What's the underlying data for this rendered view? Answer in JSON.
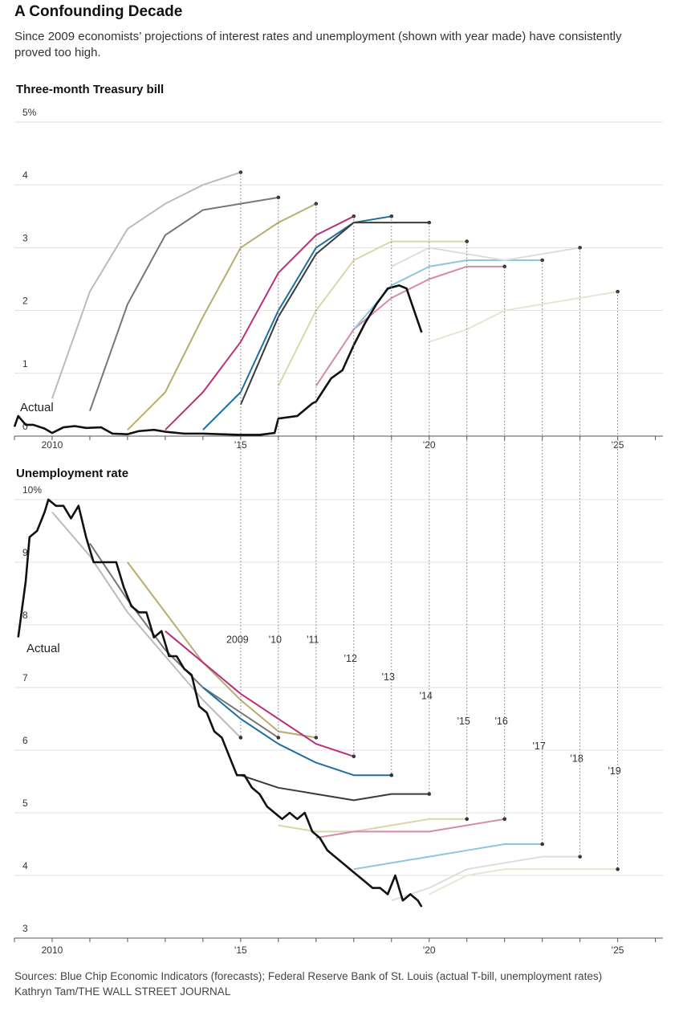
{
  "title": "A Confounding Decade",
  "subtitle": "Since 2009 economists’ projections of interest rates and unemployment (shown with year made) have consistently proved too high.",
  "footer": {
    "sources": "Sources: Blue Chip Economic Indicators (forecasts); Federal Reserve Bank of St. Louis (actual T-bill, unemployment rates)",
    "credit": "Kathryn Tam/THE WALL STREET JOURNAL"
  },
  "chart_data": [
    {
      "type": "line",
      "title": "Three-month Treasury bill",
      "ylim": [
        0,
        5
      ],
      "yticks": [
        0,
        1,
        2,
        3,
        4,
        5
      ],
      "ytick_labels": [
        "0",
        "1",
        "2",
        "3",
        "4",
        "5%"
      ],
      "xlim": [
        2009.0,
        2026.2
      ],
      "xticks": [
        2010,
        2015,
        2020,
        2025
      ],
      "xtick_labels": [
        "2010",
        "'15",
        "'20",
        "'25"
      ],
      "actual_label": "Actual",
      "actual": [
        [
          2009.0,
          0.15
        ],
        [
          2009.1,
          0.32
        ],
        [
          2009.3,
          0.18
        ],
        [
          2009.5,
          0.18
        ],
        [
          2009.8,
          0.12
        ],
        [
          2010.0,
          0.05
        ],
        [
          2010.3,
          0.14
        ],
        [
          2010.6,
          0.16
        ],
        [
          2010.9,
          0.13
        ],
        [
          2011.3,
          0.14
        ],
        [
          2011.6,
          0.04
        ],
        [
          2012.0,
          0.03
        ],
        [
          2012.3,
          0.08
        ],
        [
          2012.7,
          0.1
        ],
        [
          2013.0,
          0.07
        ],
        [
          2013.5,
          0.04
        ],
        [
          2014.0,
          0.04
        ],
        [
          2014.5,
          0.03
        ],
        [
          2015.0,
          0.02
        ],
        [
          2015.5,
          0.02
        ],
        [
          2015.9,
          0.05
        ],
        [
          2016.0,
          0.28
        ],
        [
          2016.5,
          0.32
        ],
        [
          2016.9,
          0.52
        ],
        [
          2017.0,
          0.55
        ],
        [
          2017.4,
          0.92
        ],
        [
          2017.7,
          1.05
        ],
        [
          2018.0,
          1.45
        ],
        [
          2018.3,
          1.8
        ],
        [
          2018.6,
          2.1
        ],
        [
          2018.9,
          2.35
        ],
        [
          2019.2,
          2.4
        ],
        [
          2019.4,
          2.35
        ],
        [
          2019.6,
          2.0
        ],
        [
          2019.8,
          1.65
        ]
      ],
      "forecasts": [
        {
          "name": "2009",
          "color": "#bbbbbb",
          "points": [
            [
              2010.0,
              0.6
            ],
            [
              2011.0,
              2.3
            ],
            [
              2012.0,
              3.3
            ],
            [
              2013.0,
              3.7
            ],
            [
              2014.0,
              4.0
            ],
            [
              2015.0,
              4.2
            ]
          ]
        },
        {
          "name": "'10",
          "color": "#777777",
          "points": [
            [
              2011.0,
              0.4
            ],
            [
              2012.0,
              2.1
            ],
            [
              2013.0,
              3.2
            ],
            [
              2014.0,
              3.6
            ],
            [
              2015.0,
              3.7
            ],
            [
              2016.0,
              3.8
            ]
          ]
        },
        {
          "name": "'11",
          "color": "#b8ad6e",
          "points": [
            [
              2012.0,
              0.1
            ],
            [
              2013.0,
              0.7
            ],
            [
              2014.0,
              1.9
            ],
            [
              2015.0,
              3.0
            ],
            [
              2016.0,
              3.4
            ],
            [
              2017.0,
              3.7
            ]
          ]
        },
        {
          "name": "'12",
          "color": "#b8307a",
          "points": [
            [
              2013.0,
              0.1
            ],
            [
              2014.0,
              0.7
            ],
            [
              2015.0,
              1.5
            ],
            [
              2016.0,
              2.6
            ],
            [
              2017.0,
              3.2
            ],
            [
              2018.0,
              3.5
            ]
          ]
        },
        {
          "name": "'13",
          "color": "#1d6f9e",
          "points": [
            [
              2014.0,
              0.1
            ],
            [
              2015.0,
              0.7
            ],
            [
              2016.0,
              2.0
            ],
            [
              2017.0,
              3.0
            ],
            [
              2018.0,
              3.4
            ],
            [
              2019.0,
              3.5
            ]
          ]
        },
        {
          "name": "'14",
          "color": "#3a3a3a",
          "points": [
            [
              2015.0,
              0.5
            ],
            [
              2016.0,
              1.9
            ],
            [
              2017.0,
              2.9
            ],
            [
              2018.0,
              3.4
            ],
            [
              2019.0,
              3.4
            ],
            [
              2020.0,
              3.4
            ]
          ]
        },
        {
          "name": "'15",
          "color": "#dad6a8",
          "points": [
            [
              2016.0,
              0.8
            ],
            [
              2017.0,
              2.0
            ],
            [
              2018.0,
              2.8
            ],
            [
              2019.0,
              3.1
            ],
            [
              2020.0,
              3.1
            ],
            [
              2021.0,
              3.1
            ]
          ]
        },
        {
          "name": "'16",
          "color": "#d68aaa",
          "points": [
            [
              2017.0,
              0.8
            ],
            [
              2018.0,
              1.7
            ],
            [
              2019.0,
              2.2
            ],
            [
              2020.0,
              2.5
            ],
            [
              2021.0,
              2.7
            ],
            [
              2022.0,
              2.7
            ]
          ]
        },
        {
          "name": "'17",
          "color": "#8ec6df",
          "points": [
            [
              2018.0,
              1.7
            ],
            [
              2019.0,
              2.4
            ],
            [
              2020.0,
              2.7
            ],
            [
              2021.0,
              2.8
            ],
            [
              2022.0,
              2.8
            ],
            [
              2023.0,
              2.8
            ]
          ]
        },
        {
          "name": "'18",
          "color": "#dddddd",
          "points": [
            [
              2019.0,
              2.7
            ],
            [
              2020.0,
              3.0
            ],
            [
              2021.0,
              2.9
            ],
            [
              2022.0,
              2.8
            ],
            [
              2023.0,
              2.9
            ],
            [
              2024.0,
              3.0
            ]
          ]
        },
        {
          "name": "'19",
          "color": "#e6e6d2",
          "points": [
            [
              2020.0,
              1.5
            ],
            [
              2021.0,
              1.7
            ],
            [
              2022.0,
              2.0
            ],
            [
              2023.0,
              2.1
            ],
            [
              2024.0,
              2.2
            ],
            [
              2025.0,
              2.3
            ]
          ]
        }
      ]
    },
    {
      "type": "line",
      "title": "Unemployment rate",
      "ylim": [
        3,
        10
      ],
      "yticks": [
        3,
        4,
        5,
        6,
        7,
        8,
        9,
        10
      ],
      "ytick_labels": [
        "3",
        "4",
        "5",
        "6",
        "7",
        "8",
        "9",
        "10%"
      ],
      "xlim": [
        2009.0,
        2026.2
      ],
      "xticks": [
        2010,
        2015,
        2020,
        2025
      ],
      "xtick_labels": [
        "2010",
        "'15",
        "'20",
        "'25"
      ],
      "actual_label": "Actual",
      "actual": [
        [
          2009.1,
          7.8
        ],
        [
          2009.3,
          8.7
        ],
        [
          2009.4,
          9.4
        ],
        [
          2009.6,
          9.5
        ],
        [
          2009.8,
          9.8
        ],
        [
          2009.9,
          10.0
        ],
        [
          2010.1,
          9.9
        ],
        [
          2010.3,
          9.9
        ],
        [
          2010.5,
          9.7
        ],
        [
          2010.7,
          9.9
        ],
        [
          2010.9,
          9.4
        ],
        [
          2011.1,
          9.0
        ],
        [
          2011.3,
          9.0
        ],
        [
          2011.5,
          9.0
        ],
        [
          2011.7,
          9.0
        ],
        [
          2011.9,
          8.6
        ],
        [
          2012.1,
          8.3
        ],
        [
          2012.3,
          8.2
        ],
        [
          2012.5,
          8.2
        ],
        [
          2012.7,
          7.8
        ],
        [
          2012.9,
          7.9
        ],
        [
          2013.1,
          7.5
        ],
        [
          2013.3,
          7.5
        ],
        [
          2013.5,
          7.3
        ],
        [
          2013.7,
          7.2
        ],
        [
          2013.9,
          6.7
        ],
        [
          2014.1,
          6.6
        ],
        [
          2014.3,
          6.3
        ],
        [
          2014.5,
          6.2
        ],
        [
          2014.7,
          5.9
        ],
        [
          2014.9,
          5.6
        ],
        [
          2015.1,
          5.6
        ],
        [
          2015.3,
          5.4
        ],
        [
          2015.5,
          5.3
        ],
        [
          2015.7,
          5.1
        ],
        [
          2015.9,
          5.0
        ],
        [
          2016.1,
          4.9
        ],
        [
          2016.3,
          5.0
        ],
        [
          2016.5,
          4.9
        ],
        [
          2016.7,
          5.0
        ],
        [
          2016.9,
          4.7
        ],
        [
          2017.1,
          4.6
        ],
        [
          2017.3,
          4.4
        ],
        [
          2017.5,
          4.3
        ],
        [
          2017.7,
          4.2
        ],
        [
          2017.9,
          4.1
        ],
        [
          2018.1,
          4.0
        ],
        [
          2018.3,
          3.9
        ],
        [
          2018.5,
          3.8
        ],
        [
          2018.7,
          3.8
        ],
        [
          2018.9,
          3.7
        ],
        [
          2019.1,
          4.0
        ],
        [
          2019.3,
          3.6
        ],
        [
          2019.5,
          3.7
        ],
        [
          2019.7,
          3.6
        ],
        [
          2019.8,
          3.5
        ]
      ],
      "forecasts": [
        {
          "name": "2009",
          "color": "#bbbbbb",
          "points": [
            [
              2010.0,
              9.8
            ],
            [
              2011.0,
              9.1
            ],
            [
              2012.0,
              8.2
            ],
            [
              2013.0,
              7.5
            ],
            [
              2014.0,
              6.8
            ],
            [
              2015.0,
              6.2
            ]
          ]
        },
        {
          "name": "'10",
          "color": "#777777",
          "points": [
            [
              2011.0,
              9.3
            ],
            [
              2012.0,
              8.4
            ],
            [
              2013.0,
              7.6
            ],
            [
              2014.0,
              7.0
            ],
            [
              2015.0,
              6.6
            ],
            [
              2016.0,
              6.2
            ]
          ]
        },
        {
          "name": "'11",
          "color": "#b8ad6e",
          "points": [
            [
              2012.0,
              9.0
            ],
            [
              2013.0,
              8.2
            ],
            [
              2014.0,
              7.4
            ],
            [
              2015.0,
              6.8
            ],
            [
              2016.0,
              6.3
            ],
            [
              2017.0,
              6.2
            ]
          ]
        },
        {
          "name": "'12",
          "color": "#b8307a",
          "points": [
            [
              2013.0,
              7.9
            ],
            [
              2014.0,
              7.4
            ],
            [
              2015.0,
              6.9
            ],
            [
              2016.0,
              6.5
            ],
            [
              2017.0,
              6.1
            ],
            [
              2018.0,
              5.9
            ]
          ]
        },
        {
          "name": "'13",
          "color": "#1d6f9e",
          "points": [
            [
              2014.0,
              7.0
            ],
            [
              2015.0,
              6.5
            ],
            [
              2016.0,
              6.1
            ],
            [
              2017.0,
              5.8
            ],
            [
              2018.0,
              5.6
            ],
            [
              2019.0,
              5.6
            ]
          ]
        },
        {
          "name": "'14",
          "color": "#3a3a3a",
          "points": [
            [
              2015.0,
              5.6
            ],
            [
              2016.0,
              5.4
            ],
            [
              2017.0,
              5.3
            ],
            [
              2018.0,
              5.2
            ],
            [
              2019.0,
              5.3
            ],
            [
              2020.0,
              5.3
            ]
          ]
        },
        {
          "name": "'15",
          "color": "#dad6a8",
          "points": [
            [
              2016.0,
              4.8
            ],
            [
              2017.0,
              4.7
            ],
            [
              2018.0,
              4.7
            ],
            [
              2019.0,
              4.8
            ],
            [
              2020.0,
              4.9
            ],
            [
              2021.0,
              4.9
            ]
          ]
        },
        {
          "name": "'16",
          "color": "#d68aaa",
          "points": [
            [
              2017.0,
              4.6
            ],
            [
              2018.0,
              4.7
            ],
            [
              2019.0,
              4.7
            ],
            [
              2020.0,
              4.7
            ],
            [
              2021.0,
              4.8
            ],
            [
              2022.0,
              4.9
            ]
          ]
        },
        {
          "name": "'17",
          "color": "#8ec6df",
          "points": [
            [
              2018.0,
              4.1
            ],
            [
              2019.0,
              4.2
            ],
            [
              2020.0,
              4.3
            ],
            [
              2021.0,
              4.4
            ],
            [
              2022.0,
              4.5
            ],
            [
              2023.0,
              4.5
            ]
          ]
        },
        {
          "name": "'18",
          "color": "#dddddd",
          "points": [
            [
              2019.0,
              3.6
            ],
            [
              2020.0,
              3.8
            ],
            [
              2021.0,
              4.1
            ],
            [
              2022.0,
              4.2
            ],
            [
              2023.0,
              4.3
            ],
            [
              2024.0,
              4.3
            ]
          ]
        },
        {
          "name": "'19",
          "color": "#e6e6d2",
          "points": [
            [
              2020.0,
              3.7
            ],
            [
              2021.0,
              4.0
            ],
            [
              2022.0,
              4.1
            ],
            [
              2023.0,
              4.1
            ],
            [
              2024.0,
              4.1
            ],
            [
              2025.0,
              4.1
            ]
          ]
        }
      ]
    }
  ]
}
